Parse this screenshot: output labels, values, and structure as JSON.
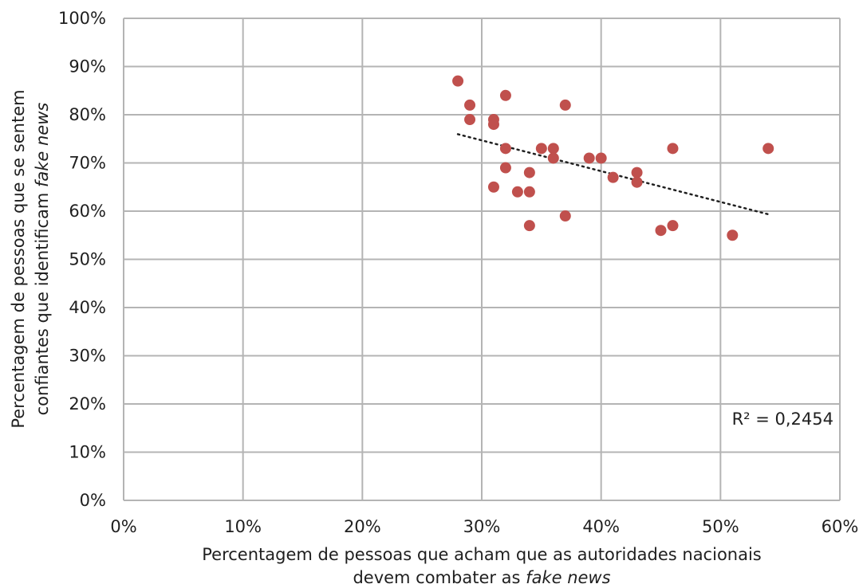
{
  "chart_data": {
    "type": "scatter",
    "title": "",
    "xlabel": {
      "line1": "Percentagem de pessoas que acham que as autoridades nacionais",
      "line2_prefix": "devem combater as ",
      "line2_italic": "fake news"
    },
    "ylabel": {
      "line1": "Percentagem de pessoas que se sentem",
      "line2_prefix": "confiantes que identificam ",
      "line2_italic": "fake news"
    },
    "xlim": [
      0,
      0.6
    ],
    "ylim": [
      0,
      1.0
    ],
    "x_ticks": [
      "0%",
      "10%",
      "20%",
      "30%",
      "40%",
      "50%",
      "60%"
    ],
    "y_ticks": [
      "0%",
      "10%",
      "20%",
      "30%",
      "40%",
      "50%",
      "60%",
      "70%",
      "80%",
      "90%",
      "100%"
    ],
    "grid": true,
    "legend": "none",
    "point_color": "#c0504d",
    "trendline": {
      "style": "dotted",
      "color": "#1f1f1f",
      "x_range": [
        0.28,
        0.54
      ],
      "r_squared_label": "R² = 0,2454"
    },
    "points": [
      {
        "x": 0.28,
        "y": 0.87
      },
      {
        "x": 0.29,
        "y": 0.82
      },
      {
        "x": 0.29,
        "y": 0.79
      },
      {
        "x": 0.31,
        "y": 0.79
      },
      {
        "x": 0.31,
        "y": 0.78
      },
      {
        "x": 0.31,
        "y": 0.65
      },
      {
        "x": 0.32,
        "y": 0.84
      },
      {
        "x": 0.32,
        "y": 0.73
      },
      {
        "x": 0.32,
        "y": 0.69
      },
      {
        "x": 0.33,
        "y": 0.64
      },
      {
        "x": 0.34,
        "y": 0.68
      },
      {
        "x": 0.34,
        "y": 0.64
      },
      {
        "x": 0.34,
        "y": 0.57
      },
      {
        "x": 0.35,
        "y": 0.73
      },
      {
        "x": 0.36,
        "y": 0.73
      },
      {
        "x": 0.36,
        "y": 0.71
      },
      {
        "x": 0.37,
        "y": 0.82
      },
      {
        "x": 0.37,
        "y": 0.59
      },
      {
        "x": 0.39,
        "y": 0.71
      },
      {
        "x": 0.4,
        "y": 0.71
      },
      {
        "x": 0.41,
        "y": 0.67
      },
      {
        "x": 0.43,
        "y": 0.68
      },
      {
        "x": 0.43,
        "y": 0.66
      },
      {
        "x": 0.45,
        "y": 0.56
      },
      {
        "x": 0.46,
        "y": 0.73
      },
      {
        "x": 0.46,
        "y": 0.57
      },
      {
        "x": 0.51,
        "y": 0.55
      },
      {
        "x": 0.54,
        "y": 0.73
      }
    ]
  }
}
